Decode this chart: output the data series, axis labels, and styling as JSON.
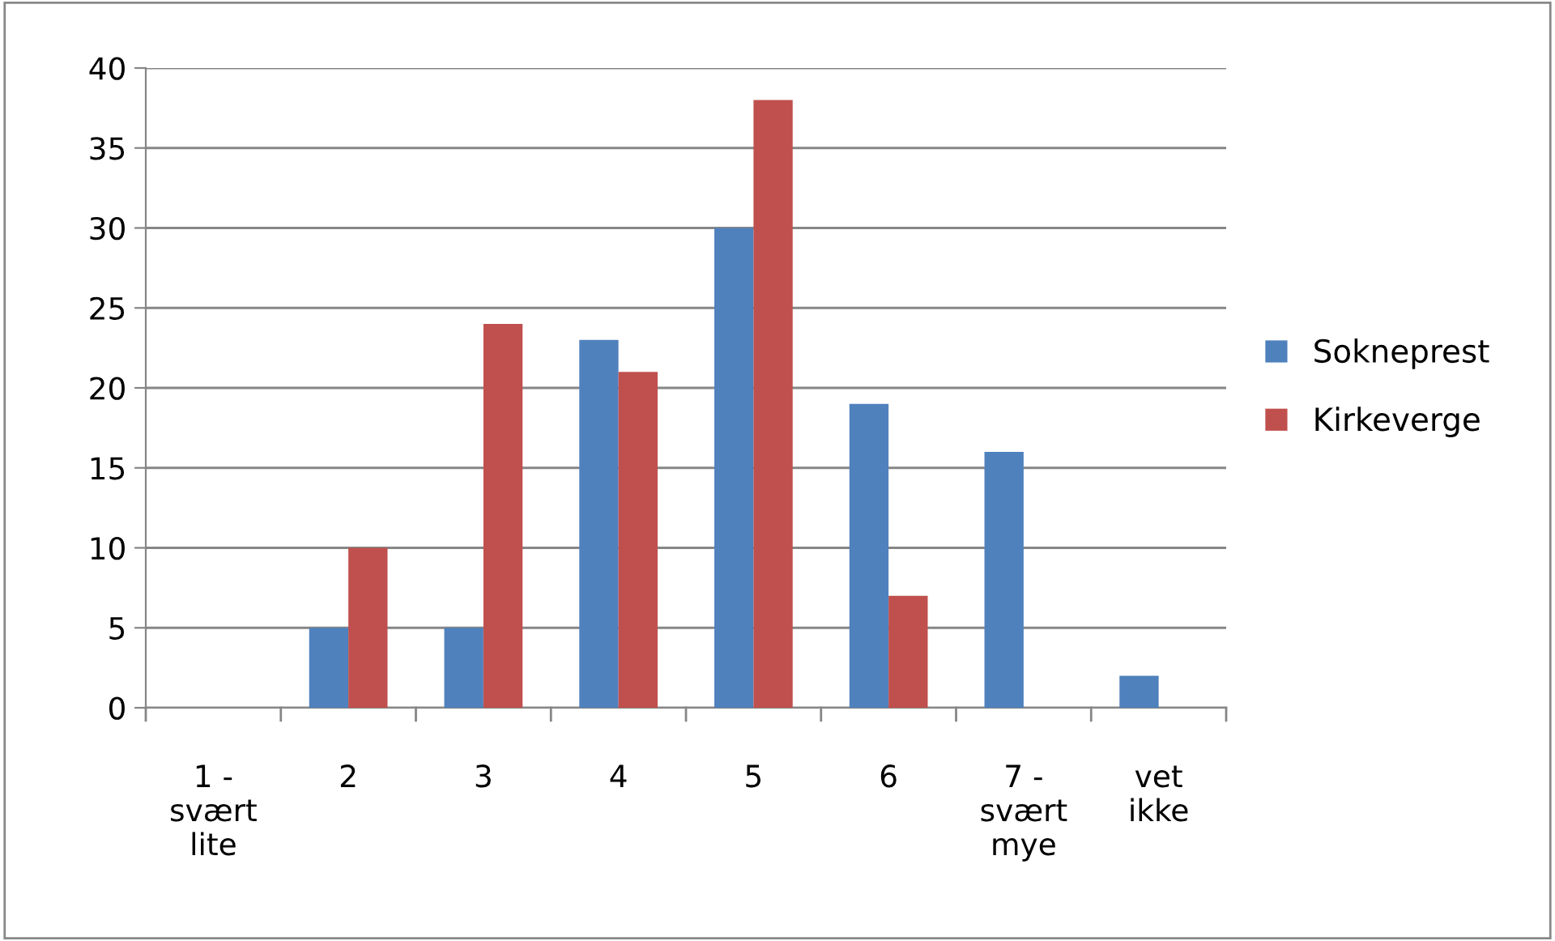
{
  "chart_data": {
    "type": "bar",
    "categories": [
      "1 -\nsvært\nlite",
      "2",
      "3",
      "4",
      "5",
      "6",
      "7 -\nsvært\nmye",
      "vet\nikke"
    ],
    "series": [
      {
        "name": "Sokneprest",
        "color": "#4f81bd",
        "values": [
          0,
          5,
          5,
          23,
          30,
          19,
          16,
          2
        ]
      },
      {
        "name": "Kirkeverge",
        "color": "#c0504d",
        "values": [
          0,
          10,
          24,
          21,
          38,
          7,
          0,
          0
        ]
      }
    ],
    "ylim": [
      0,
      40
    ],
    "yticks": [
      0,
      5,
      10,
      15,
      20,
      25,
      30,
      35,
      40
    ],
    "grid": "y",
    "legend": "right"
  }
}
